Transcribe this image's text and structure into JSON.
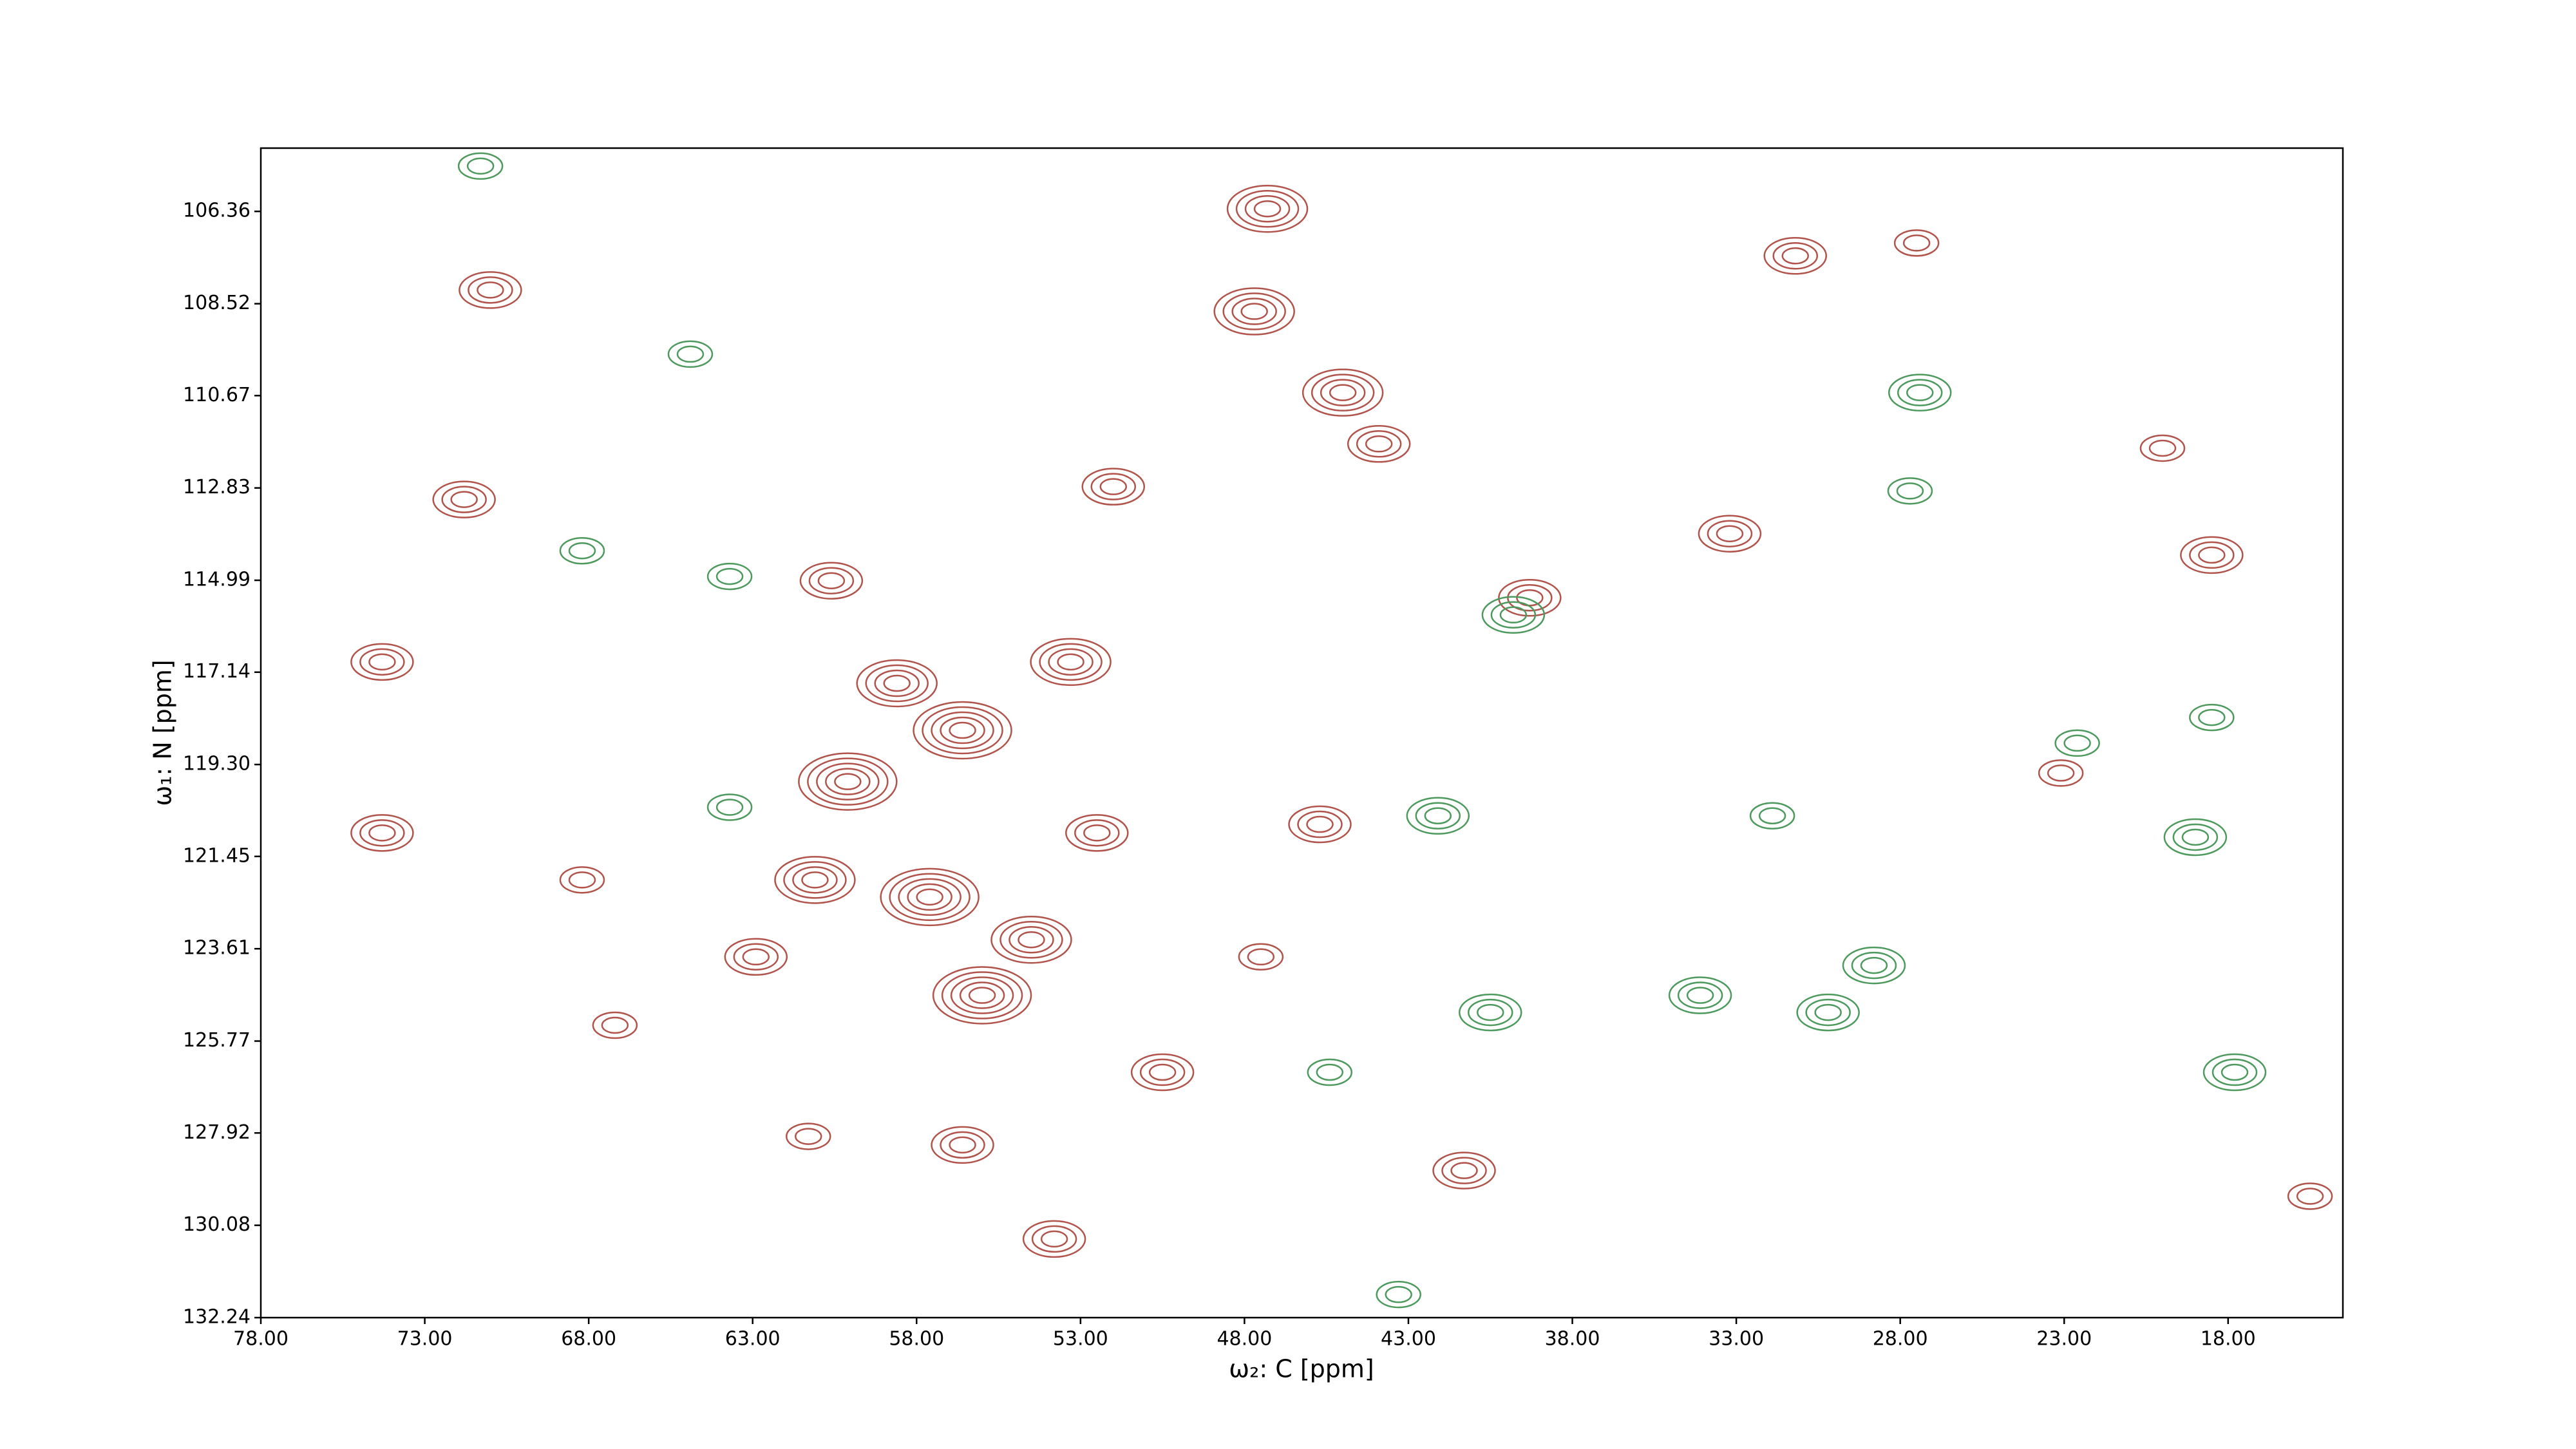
{
  "chart_data": {
    "type": "contour",
    "xlabel": "ω₂: C [ppm]",
    "ylabel": "ω₁: N [ppm]",
    "xlim": [
      78,
      14.5
    ],
    "ylim": [
      104.88,
      132.24
    ],
    "xticks": [
      {
        "value": 78,
        "label": "78.00"
      },
      {
        "value": 73,
        "label": "73.00"
      },
      {
        "value": 68,
        "label": "68.00"
      },
      {
        "value": 63,
        "label": "63.00"
      },
      {
        "value": 58,
        "label": "58.00"
      },
      {
        "value": 53,
        "label": "53.00"
      },
      {
        "value": 48,
        "label": "48.00"
      },
      {
        "value": 43,
        "label": "43.00"
      },
      {
        "value": 38,
        "label": "38.00"
      },
      {
        "value": 33,
        "label": "33.00"
      },
      {
        "value": 28,
        "label": "28.00"
      },
      {
        "value": 23,
        "label": "23.00"
      },
      {
        "value": 18,
        "label": "18.00"
      }
    ],
    "yticks": [
      106.36,
      108.52,
      110.67,
      112.83,
      114.99,
      117.14,
      {
        "value": 119.3,
        "label": "119.30"
      },
      121.45,
      123.61,
      125.77,
      127.92,
      130.08,
      132.24
    ],
    "series": [
      {
        "color": "#b0544c",
        "x": [
          47.3,
          47.7,
          45.0,
          43.9,
          52.0,
          53.3,
          56.6,
          58.6,
          60.1,
          57.6,
          61.1,
          54.5,
          56.0,
          52.5,
          50.5,
          45.7,
          60.6,
          62.9,
          61.3,
          53.8,
          56.6,
          67.2,
          71.0,
          71.8,
          74.3,
          33.2,
          18.5,
          31.2,
          39.3,
          23.1,
          41.3,
          15.5,
          68.2,
          74.3,
          27.5,
          20.0,
          47.5
        ],
        "y": [
          106.3,
          108.7,
          110.6,
          111.8,
          112.8,
          116.9,
          118.5,
          117.4,
          119.7,
          122.4,
          122.0,
          123.4,
          124.7,
          120.9,
          126.5,
          120.7,
          115.0,
          123.8,
          128.0,
          130.4,
          128.2,
          125.4,
          108.2,
          113.1,
          116.9,
          113.9,
          114.4,
          107.4,
          115.4,
          119.5,
          128.8,
          129.4,
          122.0,
          120.9,
          107.1,
          111.9,
          123.8
        ],
        "levels": [
          4,
          4,
          4,
          3,
          3,
          4,
          5,
          4,
          5,
          5,
          4,
          4,
          5,
          3,
          3,
          3,
          3,
          3,
          2,
          3,
          3,
          2,
          3,
          3,
          3,
          3,
          3,
          3,
          3,
          2,
          3,
          2,
          2,
          3,
          2,
          2,
          2
        ]
      },
      {
        "color": "#4e9a5e",
        "x": [
          27.4,
          30.2,
          22.6,
          19.0,
          17.8,
          39.8,
          42.1,
          40.5,
          34.1,
          28.8,
          31.9,
          63.7,
          63.7,
          68.2,
          18.5,
          27.7,
          45.4,
          64.9,
          71.3,
          43.3
        ],
        "y": [
          110.6,
          125.1,
          118.8,
          121.0,
          126.5,
          115.8,
          120.5,
          125.1,
          124.7,
          124.0,
          120.5,
          120.3,
          114.9,
          114.3,
          118.2,
          112.9,
          126.5,
          109.7,
          105.3,
          131.7
        ],
        "levels": [
          3,
          3,
          2,
          3,
          3,
          3,
          3,
          3,
          3,
          3,
          2,
          2,
          2,
          2,
          2,
          2,
          2,
          2,
          2,
          2
        ]
      }
    ]
  }
}
